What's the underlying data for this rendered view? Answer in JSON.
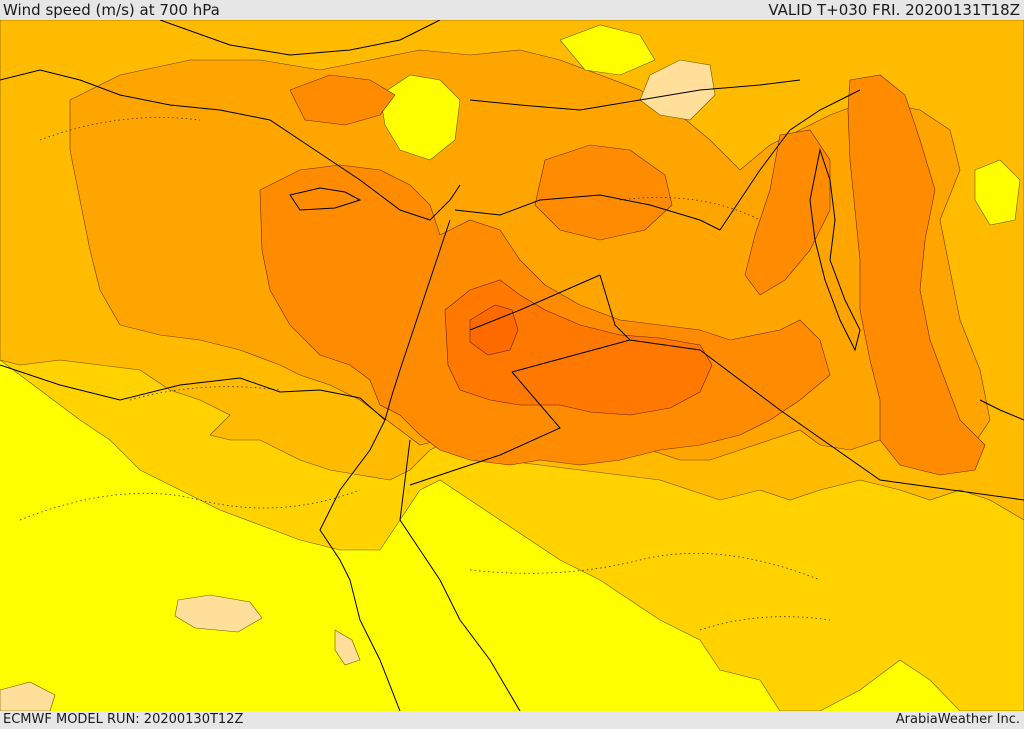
{
  "header": {
    "title": "Wind speed (m/s) at 700 hPa",
    "valid": "VALID T+030 FRI. 20200131T18Z"
  },
  "footer": {
    "model_run": "ECMWF MODEL RUN: 20200130T12Z",
    "credit": "ArabiaWeather Inc."
  },
  "palette": {
    "band_light": "#ffdf99",
    "band_yellow": "#ffff00",
    "band_gold": "#ffd200",
    "band_amber": "#ffbb00",
    "band_orange": "#ffa500",
    "band_dark_orange": "#ff8c00",
    "band_deep_orange": "#ff7800",
    "border_color": "#000000"
  },
  "map": {
    "variable": "wind speed",
    "units": "m/s",
    "level": "700 hPa"
  }
}
